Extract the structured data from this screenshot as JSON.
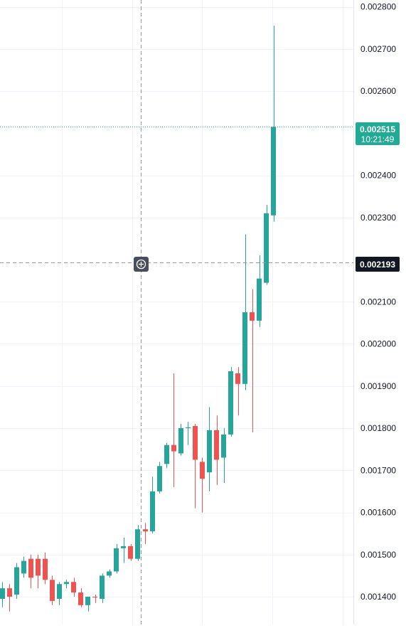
{
  "colors": {
    "up": "#26a69a",
    "down": "#ef5350",
    "grid": "#f0f3fa",
    "axis_text": "#131722",
    "crosshair": "#9598a1",
    "crosshair_label_bg": "#131722",
    "last_price_bg": "#22ab94",
    "background": "#ffffff"
  },
  "price_axis": {
    "ticks": [
      "0.002800",
      "0.002700",
      "0.002600",
      "0.002400",
      "0.002300",
      "0.002100",
      "0.002000",
      "0.001900",
      "0.001800",
      "0.001700",
      "0.001600",
      "0.001500",
      "0.001400"
    ]
  },
  "last_price": {
    "value_label": "0.002515",
    "countdown": "10:21:49"
  },
  "crosshair": {
    "price_label": "0.002193",
    "icon": "plus-circle-icon"
  },
  "chart_data": {
    "type": "candlestick",
    "ylim": [
      0.00136,
      0.00283
    ],
    "grid": true,
    "last_price": 0.002515,
    "crosshair_price": 0.002193,
    "candles": [
      {
        "o": 0.001395,
        "h": 0.001435,
        "l": 0.001375,
        "c": 0.00142
      },
      {
        "o": 0.00142,
        "h": 0.00143,
        "l": 0.001365,
        "c": 0.0014
      },
      {
        "o": 0.001405,
        "h": 0.00148,
        "l": 0.001395,
        "c": 0.00147
      },
      {
        "o": 0.001455,
        "h": 0.001495,
        "l": 0.001445,
        "c": 0.001485
      },
      {
        "o": 0.00149,
        "h": 0.0015,
        "l": 0.00142,
        "c": 0.001445
      },
      {
        "o": 0.00149,
        "h": 0.0015,
        "l": 0.00142,
        "c": 0.00145
      },
      {
        "o": 0.00149,
        "h": 0.001505,
        "l": 0.00143,
        "c": 0.00144
      },
      {
        "o": 0.00144,
        "h": 0.00145,
        "l": 0.00138,
        "c": 0.00139
      },
      {
        "o": 0.001395,
        "h": 0.001435,
        "l": 0.00138,
        "c": 0.00143
      },
      {
        "o": 0.00143,
        "h": 0.00144,
        "l": 0.00142,
        "c": 0.001435
      },
      {
        "o": 0.001435,
        "h": 0.001445,
        "l": 0.0014,
        "c": 0.00141
      },
      {
        "o": 0.00141,
        "h": 0.00142,
        "l": 0.001375,
        "c": 0.00138
      },
      {
        "o": 0.00138,
        "h": 0.0014,
        "l": 0.001365,
        "c": 0.0014
      },
      {
        "o": 0.0014,
        "h": 0.001405,
        "l": 0.001385,
        "c": 0.001398
      },
      {
        "o": 0.001395,
        "h": 0.001455,
        "l": 0.001385,
        "c": 0.00145
      },
      {
        "o": 0.00145,
        "h": 0.001465,
        "l": 0.001445,
        "c": 0.00146
      },
      {
        "o": 0.00146,
        "h": 0.001525,
        "l": 0.001455,
        "c": 0.001515
      },
      {
        "o": 0.001515,
        "h": 0.00154,
        "l": 0.00148,
        "c": 0.00152
      },
      {
        "o": 0.00152,
        "h": 0.001525,
        "l": 0.001485,
        "c": 0.00149
      },
      {
        "o": 0.00149,
        "h": 0.00157,
        "l": 0.001485,
        "c": 0.00156
      },
      {
        "o": 0.00156,
        "h": 0.001575,
        "l": 0.001525,
        "c": 0.001555
      },
      {
        "o": 0.001555,
        "h": 0.001685,
        "l": 0.00155,
        "c": 0.00165
      },
      {
        "o": 0.00165,
        "h": 0.00172,
        "l": 0.001645,
        "c": 0.00171
      },
      {
        "o": 0.001715,
        "h": 0.001765,
        "l": 0.001705,
        "c": 0.00176
      },
      {
        "o": 0.00176,
        "h": 0.00193,
        "l": 0.00166,
        "c": 0.001745
      },
      {
        "o": 0.00174,
        "h": 0.00181,
        "l": 0.001735,
        "c": 0.0018
      },
      {
        "o": 0.0018,
        "h": 0.001815,
        "l": 0.00176,
        "c": 0.001802
      },
      {
        "o": 0.001805,
        "h": 0.00181,
        "l": 0.00161,
        "c": 0.001725
      },
      {
        "o": 0.00172,
        "h": 0.00173,
        "l": 0.0016,
        "c": 0.00168
      },
      {
        "o": 0.001695,
        "h": 0.00185,
        "l": 0.00165,
        "c": 0.001795
      },
      {
        "o": 0.001795,
        "h": 0.00183,
        "l": 0.001665,
        "c": 0.001725
      },
      {
        "o": 0.00173,
        "h": 0.0018,
        "l": 0.00167,
        "c": 0.001785
      },
      {
        "o": 0.001785,
        "h": 0.001945,
        "l": 0.00178,
        "c": 0.001935
      },
      {
        "o": 0.00193,
        "h": 0.001945,
        "l": 0.00183,
        "c": 0.001905
      },
      {
        "o": 0.001905,
        "h": 0.00226,
        "l": 0.00189,
        "c": 0.002075
      },
      {
        "o": 0.002075,
        "h": 0.00213,
        "l": 0.00179,
        "c": 0.002055
      },
      {
        "o": 0.002055,
        "h": 0.00221,
        "l": 0.00204,
        "c": 0.002155
      },
      {
        "o": 0.002145,
        "h": 0.00233,
        "l": 0.00214,
        "c": 0.00231
      },
      {
        "o": 0.002305,
        "h": 0.002755,
        "l": 0.00229,
        "c": 0.002515
      }
    ]
  }
}
